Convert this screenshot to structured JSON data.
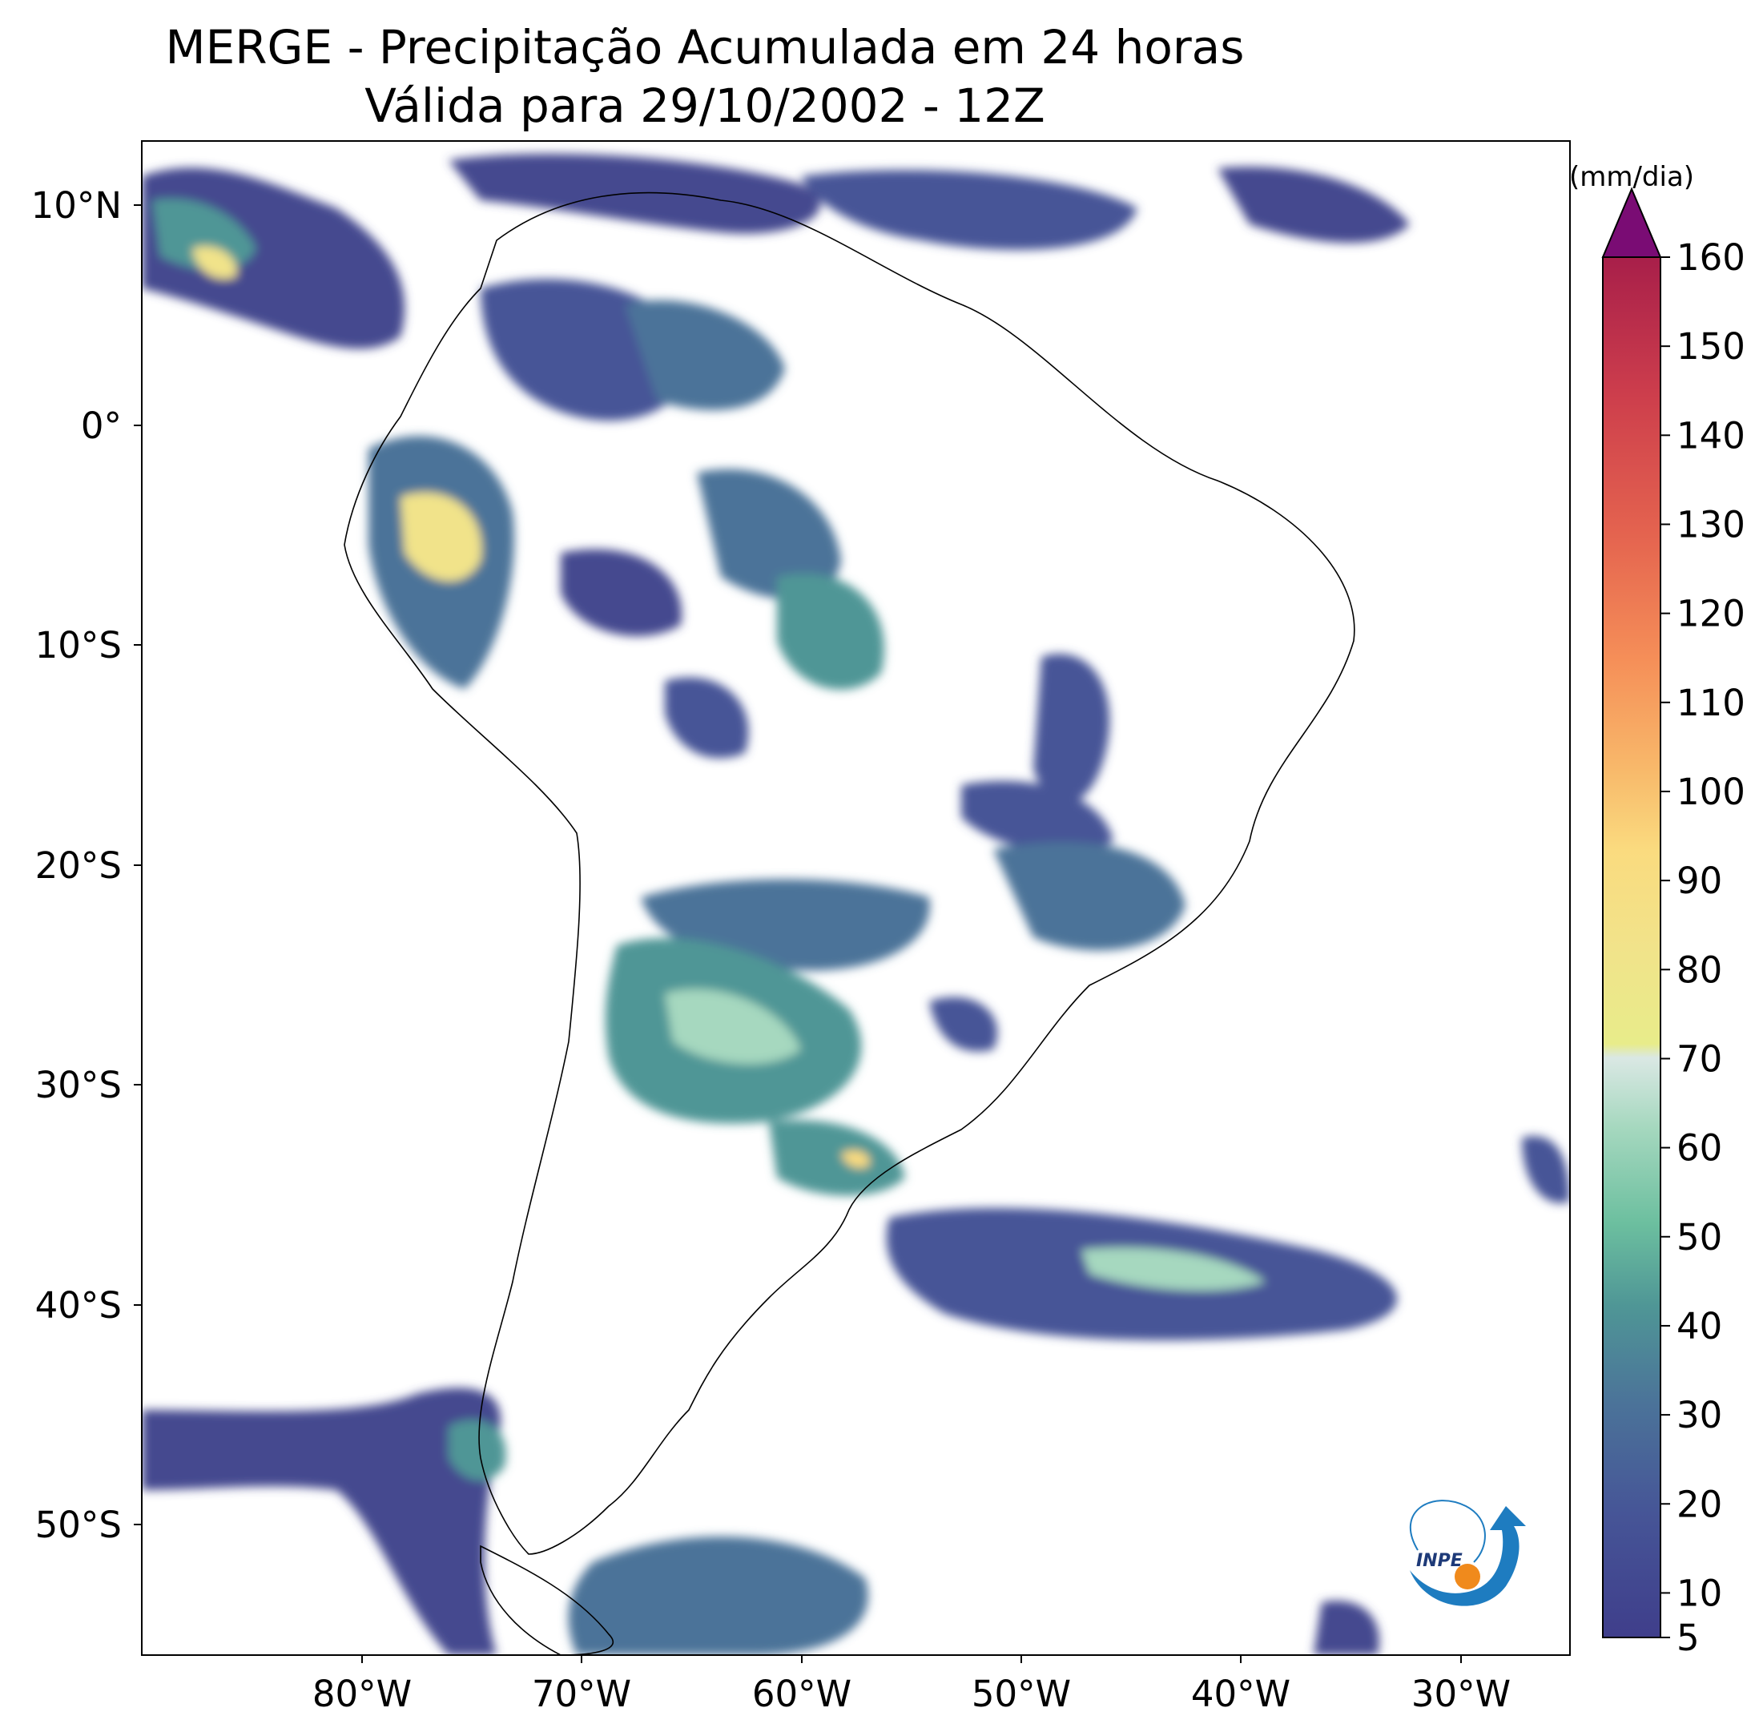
{
  "title": {
    "line1": "MERGE - Precipitação Acumulada em 24 horas",
    "line2": "Válida para 29/10/2002 - 12Z"
  },
  "map": {
    "lat_ticks": [
      "10°N",
      "0°",
      "10°S",
      "20°S",
      "30°S",
      "40°S",
      "50°S"
    ],
    "lon_ticks": [
      "80°W",
      "70°W",
      "60°W",
      "50°W",
      "40°W",
      "30°W"
    ],
    "lat_range": [
      -56,
      13
    ],
    "lon_range": [
      -90,
      -25
    ],
    "region": "South America"
  },
  "colorbar": {
    "unit": "(mm/dia)",
    "ticks": [
      "5",
      "10",
      "20",
      "30",
      "40",
      "50",
      "60",
      "70",
      "80",
      "90",
      "100",
      "110",
      "120",
      "130",
      "140",
      "150",
      "160"
    ],
    "extend": "max"
  },
  "logo": {
    "text": "INPE"
  },
  "colors": {
    "low": "#45488f",
    "mid": "#4a8c8c",
    "green": "#71c3a2",
    "light": "#e4eecf",
    "yellow": "#f9dd84",
    "orange": "#f99e5c",
    "red": "#c5384e",
    "extreme": "#7a0c74"
  }
}
